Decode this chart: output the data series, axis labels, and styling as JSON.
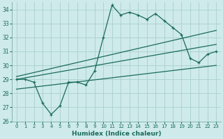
{
  "xlabel": "Humidex (Indice chaleur)",
  "bg_color": "#ceeaea",
  "grid_color": "#aacfcf",
  "line_color": "#1a6b5a",
  "xlim": [
    -0.5,
    23.5
  ],
  "ylim": [
    26,
    34.5
  ],
  "yticks": [
    26,
    27,
    28,
    29,
    30,
    31,
    32,
    33,
    34
  ],
  "xticks": [
    0,
    1,
    2,
    3,
    4,
    5,
    6,
    7,
    8,
    9,
    10,
    11,
    12,
    13,
    14,
    15,
    16,
    17,
    18,
    19,
    20,
    21,
    22,
    23
  ],
  "main_x": [
    0,
    1,
    2,
    3,
    4,
    5,
    6,
    7,
    8,
    9,
    10,
    11,
    12,
    13,
    14,
    15,
    16,
    17,
    18,
    19,
    20,
    21,
    22,
    23
  ],
  "main_y": [
    29.0,
    29.0,
    28.8,
    27.3,
    26.5,
    27.1,
    28.8,
    28.8,
    28.6,
    29.6,
    32.0,
    34.3,
    33.6,
    33.8,
    33.6,
    33.3,
    33.7,
    33.2,
    32.7,
    32.2,
    30.5,
    30.2,
    30.8,
    31.0
  ],
  "trend1_x": [
    0,
    23
  ],
  "trend1_y": [
    29.2,
    32.5
  ],
  "trend2_x": [
    0,
    23
  ],
  "trend2_y": [
    29.0,
    31.5
  ],
  "trend3_x": [
    0,
    23
  ],
  "trend3_y": [
    28.3,
    30.0
  ]
}
